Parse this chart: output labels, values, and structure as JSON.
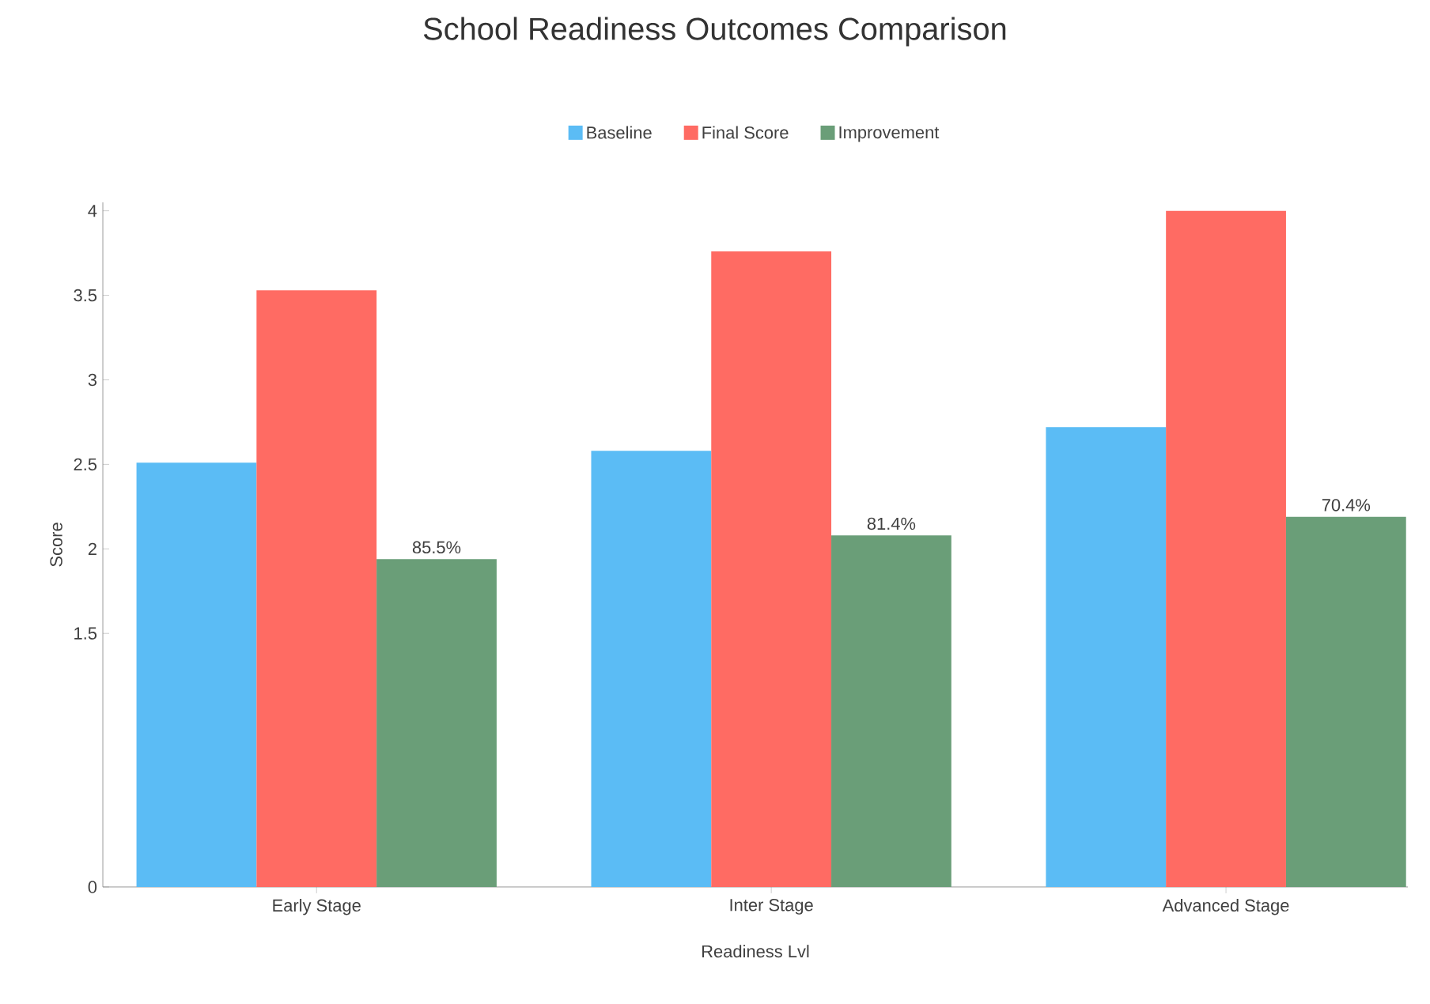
{
  "chart_data": {
    "type": "bar",
    "title": "School Readiness Outcomes Comparison",
    "xlabel": "Readiness Lvl",
    "ylabel": "Score",
    "categories": [
      "Early Stage",
      "Inter Stage",
      "Advanced Stage"
    ],
    "series": [
      {
        "name": "Baseline",
        "color": "#5bbcf5",
        "values": [
          2.51,
          2.58,
          2.72
        ]
      },
      {
        "name": "Final Score",
        "color": "#ff6b63",
        "values": [
          3.53,
          3.76,
          4.0
        ]
      },
      {
        "name": "Improvement",
        "color": "#6a9e78",
        "values": [
          1.94,
          2.08,
          2.19
        ]
      }
    ],
    "annotations": [
      "85.5%",
      "81.4%",
      "70.4%"
    ],
    "ylim": [
      0,
      4.05
    ],
    "yticks": [
      0,
      1.5,
      2,
      2.5,
      3,
      3.5,
      4
    ],
    "legend": "top",
    "grid": false
  }
}
